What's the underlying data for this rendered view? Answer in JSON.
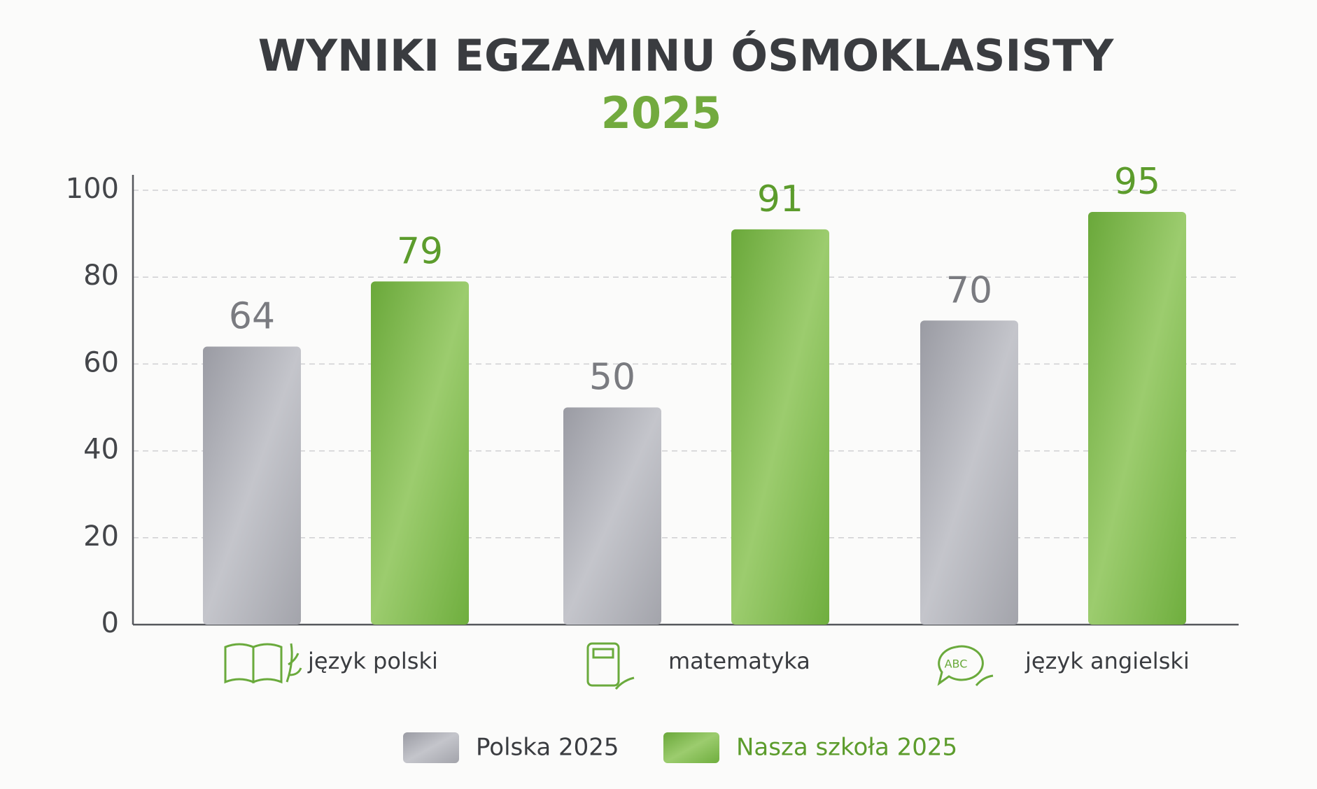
{
  "chart_data": {
    "type": "bar",
    "title": "WYNIKI EGZAMINU ÓSMOKLASISTY",
    "subtitle": "2025",
    "categories": [
      "język polski",
      "matematyka",
      "język angielski"
    ],
    "series": [
      {
        "name": "Polska 2025",
        "color": "#a9aab1",
        "values": [
          64,
          50,
          70
        ]
      },
      {
        "name": "Nasza szkoła 2025",
        "color": "#7cb84a",
        "values": [
          79,
          91,
          95
        ]
      }
    ],
    "ylim": [
      0,
      100
    ],
    "yticks": [
      0,
      20,
      40,
      60,
      80,
      100
    ],
    "grid": true
  }
}
